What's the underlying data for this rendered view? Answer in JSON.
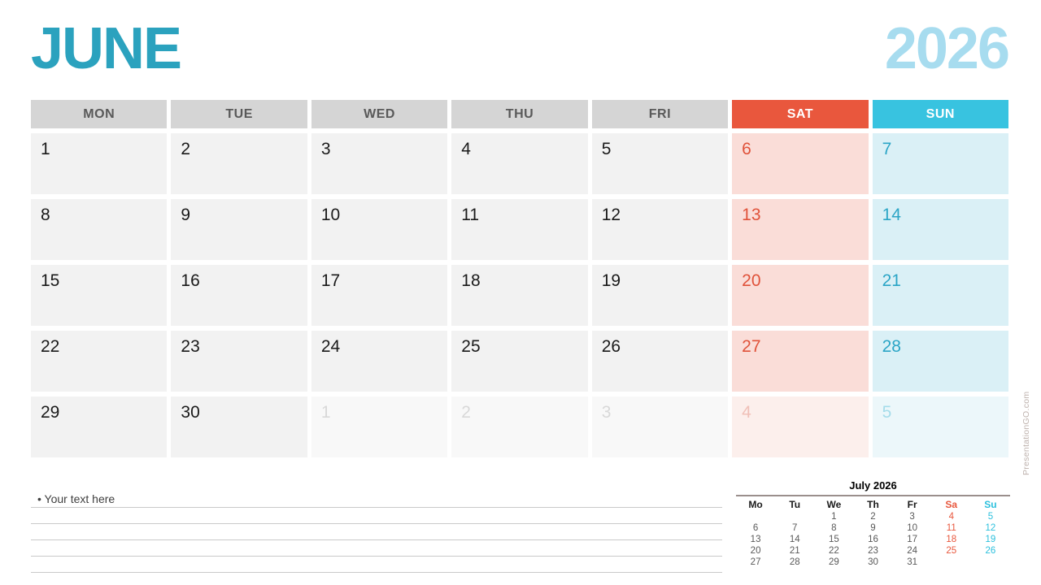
{
  "page": {
    "month_title": "JUNE",
    "year": "2026",
    "watermark": "PresentationGO.com"
  },
  "colors": {
    "title_teal": "#2BA2BE",
    "year_light_blue": "#A7DCEF",
    "header_gray_bg": "#D5D5D5",
    "header_gray_text": "#595959",
    "saturday_red": "#E9573D",
    "sunday_cyan": "#38C3E0",
    "weekday_cell_bg": "#F2F2F2",
    "day_text": "#1A1A1A",
    "saturday_cell_bg": "#FADDD8",
    "saturday_day_text": "#E0523A",
    "sunday_cell_bg": "#DAF0F6",
    "sunday_day_text": "#2BA5C6",
    "next_weekday_cell_bg": "#F8F8F8",
    "next_day_text": "#D8D8D8",
    "next_saturday_cell_bg": "#FCEFEC",
    "next_saturday_day_text": "#F0C0B8",
    "next_sunday_cell_bg": "#ECF7FA",
    "next_sunday_day_text": "#A5DCEA",
    "mini_sa_text": "#E8573D",
    "mini_su_text": "#2CC0DD",
    "watermark_gray": "#BEB2AD"
  },
  "main_calendar": {
    "headers": [
      {
        "label": "MON",
        "type": "wd"
      },
      {
        "label": "TUE",
        "type": "wd"
      },
      {
        "label": "WED",
        "type": "wd"
      },
      {
        "label": "THU",
        "type": "wd"
      },
      {
        "label": "FRI",
        "type": "wd"
      },
      {
        "label": "SAT",
        "type": "sat"
      },
      {
        "label": "SUN",
        "type": "sun"
      }
    ],
    "weeks": [
      [
        {
          "day": "1",
          "type": "wd"
        },
        {
          "day": "2",
          "type": "wd"
        },
        {
          "day": "3",
          "type": "wd"
        },
        {
          "day": "4",
          "type": "wd"
        },
        {
          "day": "5",
          "type": "wd"
        },
        {
          "day": "6",
          "type": "sat"
        },
        {
          "day": "7",
          "type": "sun"
        }
      ],
      [
        {
          "day": "8",
          "type": "wd"
        },
        {
          "day": "9",
          "type": "wd"
        },
        {
          "day": "10",
          "type": "wd"
        },
        {
          "day": "11",
          "type": "wd"
        },
        {
          "day": "12",
          "type": "wd"
        },
        {
          "day": "13",
          "type": "sat"
        },
        {
          "day": "14",
          "type": "sun"
        }
      ],
      [
        {
          "day": "15",
          "type": "wd"
        },
        {
          "day": "16",
          "type": "wd"
        },
        {
          "day": "17",
          "type": "wd"
        },
        {
          "day": "18",
          "type": "wd"
        },
        {
          "day": "19",
          "type": "wd"
        },
        {
          "day": "20",
          "type": "sat"
        },
        {
          "day": "21",
          "type": "sun"
        }
      ],
      [
        {
          "day": "22",
          "type": "wd"
        },
        {
          "day": "23",
          "type": "wd"
        },
        {
          "day": "24",
          "type": "wd"
        },
        {
          "day": "25",
          "type": "wd"
        },
        {
          "day": "26",
          "type": "wd"
        },
        {
          "day": "27",
          "type": "sat"
        },
        {
          "day": "28",
          "type": "sun"
        }
      ],
      [
        {
          "day": "29",
          "type": "wd"
        },
        {
          "day": "30",
          "type": "wd"
        },
        {
          "day": "1",
          "type": "wd",
          "next_month": true
        },
        {
          "day": "2",
          "type": "wd",
          "next_month": true
        },
        {
          "day": "3",
          "type": "wd",
          "next_month": true
        },
        {
          "day": "4",
          "type": "sat",
          "next_month": true
        },
        {
          "day": "5",
          "type": "sun",
          "next_month": true
        }
      ]
    ]
  },
  "notes": {
    "bullet": "•",
    "placeholder_text": "Your text here",
    "line_count": 5
  },
  "mini_calendar": {
    "title": "July 2026",
    "headers": [
      {
        "label": "Mo",
        "type": ""
      },
      {
        "label": "Tu",
        "type": ""
      },
      {
        "label": "We",
        "type": ""
      },
      {
        "label": "Th",
        "type": ""
      },
      {
        "label": "Fr",
        "type": ""
      },
      {
        "label": "Sa",
        "type": "sa"
      },
      {
        "label": "Su",
        "type": "su"
      }
    ],
    "weeks": [
      [
        "",
        "",
        "1",
        "2",
        "3",
        "4",
        "5"
      ],
      [
        "6",
        "7",
        "8",
        "9",
        "10",
        "11",
        "12"
      ],
      [
        "13",
        "14",
        "15",
        "16",
        "17",
        "18",
        "19"
      ],
      [
        "20",
        "21",
        "22",
        "23",
        "24",
        "25",
        "26"
      ],
      [
        "27",
        "28",
        "29",
        "30",
        "31",
        "",
        ""
      ]
    ]
  }
}
